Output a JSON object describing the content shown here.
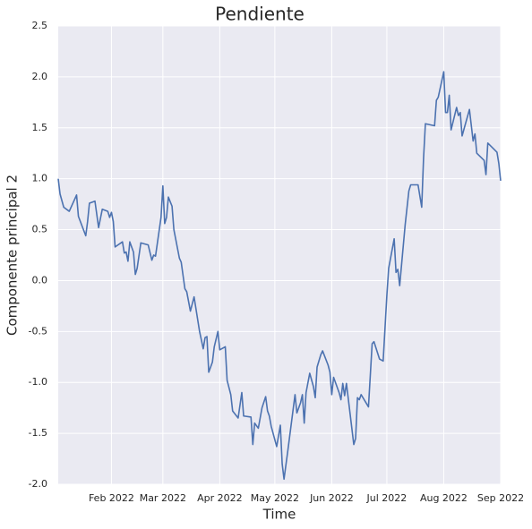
{
  "chart_data": {
    "type": "line",
    "title": "Pendiente",
    "x_label": "Time",
    "y_label": "Componente principal 2",
    "color": "#4c72b0",
    "grid": true,
    "xlim": [
      "2022-01-03",
      "2022-09-01"
    ],
    "xticks": [
      {
        "value": "2022-02-01",
        "label": "Feb 2022"
      },
      {
        "value": "2022-03-01",
        "label": "Mar 2022"
      },
      {
        "value": "2022-04-01",
        "label": "Apr 2022"
      },
      {
        "value": "2022-05-01",
        "label": "May 2022"
      },
      {
        "value": "2022-06-01",
        "label": "Jun 2022"
      },
      {
        "value": "2022-07-01",
        "label": "Jul 2022"
      },
      {
        "value": "2022-08-01",
        "label": "Aug 2022"
      },
      {
        "value": "2022-09-01",
        "label": "Sep 2022"
      }
    ],
    "ylim": [
      -2,
      2.5
    ],
    "yticks": [
      {
        "value": -2,
        "label": "-2.0"
      },
      -1.5,
      {
        "value": -1,
        "label": "-1.0"
      },
      -0.5,
      {
        "value": 0,
        "label": "0.0"
      },
      0.5,
      {
        "value": 1,
        "label": "1.0"
      },
      1.5,
      {
        "value": 2,
        "label": "2.0"
      },
      2.5
    ],
    "x": [
      "2022-01-03",
      "2022-01-04",
      "2022-01-06",
      "2022-01-09",
      "2022-01-12",
      "2022-01-13",
      "2022-01-14",
      "2022-01-18",
      "2022-01-19",
      "2022-01-20",
      "2022-01-23",
      "2022-01-25",
      "2022-01-27",
      "2022-01-30",
      "2022-01-31",
      "2022-02-01",
      "2022-02-02",
      "2022-02-03",
      "2022-02-07",
      "2022-02-08",
      "2022-02-09",
      "2022-02-10",
      "2022-02-11",
      "2022-02-13",
      "2022-02-14",
      "2022-02-15",
      "2022-02-17",
      "2022-02-21",
      "2022-02-23",
      "2022-02-24",
      "2022-02-25",
      "2022-02-28",
      "2022-03-01",
      "2022-03-02",
      "2022-03-03",
      "2022-03-04",
      "2022-03-06",
      "2022-03-07",
      "2022-03-10",
      "2022-03-11",
      "2022-03-13",
      "2022-03-14",
      "2022-03-16",
      "2022-03-18",
      "2022-03-21",
      "2022-03-23",
      "2022-03-24",
      "2022-03-25",
      "2022-03-26",
      "2022-03-28",
      "2022-03-29",
      "2022-03-31",
      "2022-04-01",
      "2022-04-04",
      "2022-04-05",
      "2022-04-07",
      "2022-04-08",
      "2022-04-11",
      "2022-04-13",
      "2022-04-14",
      "2022-04-18",
      "2022-04-19",
      "2022-04-20",
      "2022-04-22",
      "2022-04-24",
      "2022-04-26",
      "2022-04-27",
      "2022-04-28",
      "2022-04-29",
      "2022-05-02",
      "2022-05-04",
      "2022-05-05",
      "2022-05-06",
      "2022-05-08",
      "2022-05-12",
      "2022-05-13",
      "2022-05-15",
      "2022-05-16",
      "2022-05-17",
      "2022-05-18",
      "2022-05-20",
      "2022-05-22",
      "2022-05-23",
      "2022-05-24",
      "2022-05-26",
      "2022-05-27",
      "2022-05-30",
      "2022-05-31",
      "2022-06-01",
      "2022-06-02",
      "2022-06-05",
      "2022-06-06",
      "2022-06-07",
      "2022-06-08",
      "2022-06-09",
      "2022-06-11",
      "2022-06-13",
      "2022-06-14",
      "2022-06-15",
      "2022-06-16",
      "2022-06-17",
      "2022-06-21",
      "2022-06-23",
      "2022-06-24",
      "2022-06-27",
      "2022-06-29",
      "2022-07-01",
      "2022-07-02",
      "2022-07-05",
      "2022-07-06",
      "2022-07-07",
      "2022-07-08",
      "2022-07-11",
      "2022-07-13",
      "2022-07-14",
      "2022-07-18",
      "2022-07-20",
      "2022-07-21",
      "2022-07-22",
      "2022-07-27",
      "2022-07-28",
      "2022-07-29",
      "2022-08-01",
      "2022-08-02",
      "2022-08-03",
      "2022-08-04",
      "2022-08-05",
      "2022-08-08",
      "2022-08-09",
      "2022-08-10",
      "2022-08-11",
      "2022-08-15",
      "2022-08-17",
      "2022-08-18",
      "2022-08-19",
      "2022-08-23",
      "2022-08-24",
      "2022-08-25",
      "2022-08-30",
      "2022-08-31",
      "2022-09-01"
    ],
    "values": [
      1.0,
      0.85,
      0.72,
      0.68,
      0.8,
      0.84,
      0.63,
      0.44,
      0.58,
      0.76,
      0.78,
      0.52,
      0.7,
      0.68,
      0.62,
      0.67,
      0.58,
      0.33,
      0.38,
      0.27,
      0.28,
      0.19,
      0.38,
      0.28,
      0.06,
      0.12,
      0.37,
      0.35,
      0.2,
      0.25,
      0.24,
      0.62,
      0.93,
      0.56,
      0.62,
      0.82,
      0.73,
      0.5,
      0.22,
      0.18,
      -0.08,
      -0.11,
      -0.3,
      -0.16,
      -0.5,
      -0.67,
      -0.56,
      -0.55,
      -0.9,
      -0.8,
      -0.65,
      -0.5,
      -0.68,
      -0.65,
      -0.98,
      -1.12,
      -1.28,
      -1.35,
      -1.1,
      -1.33,
      -1.34,
      -1.61,
      -1.4,
      -1.45,
      -1.25,
      -1.14,
      -1.28,
      -1.33,
      -1.43,
      -1.63,
      -1.42,
      -1.8,
      -1.95,
      -1.68,
      -1.12,
      -1.3,
      -1.2,
      -1.12,
      -1.4,
      -1.1,
      -0.91,
      -1.04,
      -1.15,
      -0.85,
      -0.73,
      -0.69,
      -0.83,
      -0.9,
      -1.12,
      -0.95,
      -1.1,
      -1.17,
      -1.01,
      -1.13,
      -1.01,
      -1.31,
      -1.61,
      -1.55,
      -1.15,
      -1.17,
      -1.12,
      -1.24,
      -0.62,
      -0.6,
      -0.77,
      -0.79,
      -0.15,
      0.12,
      0.41,
      0.08,
      0.11,
      -0.05,
      0.55,
      0.88,
      0.94,
      0.94,
      0.72,
      1.2,
      1.54,
      1.52,
      1.77,
      1.8,
      2.05,
      1.65,
      1.65,
      1.82,
      1.48,
      1.7,
      1.62,
      1.65,
      1.42,
      1.68,
      1.37,
      1.44,
      1.25,
      1.18,
      1.04,
      1.35,
      1.26,
      1.15,
      0.98
    ]
  }
}
